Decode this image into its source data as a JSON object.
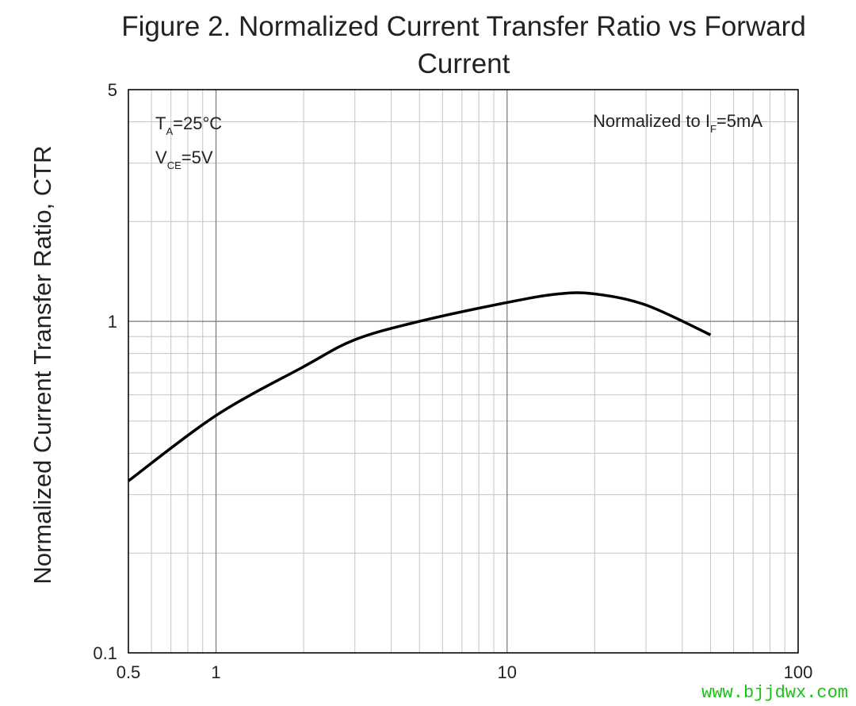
{
  "chart_data": {
    "type": "line",
    "title": "Figure 2. Normalized Current Transfer Ratio vs Forward Current",
    "y_label": "Normalized Current Transfer Ratio, CTR",
    "x_scale": "log",
    "y_scale": "log",
    "grid": true,
    "xlim": [
      0.5,
      100
    ],
    "ylim": [
      0.1,
      5
    ],
    "xticks": [
      0.5,
      1,
      10,
      100
    ],
    "yticks": [
      0.1,
      1,
      5
    ],
    "x_minor_grid": [
      0.6,
      0.7,
      0.8,
      0.9,
      2,
      3,
      4,
      5,
      6,
      7,
      8,
      9,
      20,
      30,
      40,
      50,
      60,
      70,
      80,
      90
    ],
    "y_minor_grid": [
      0.2,
      0.3,
      0.4,
      0.5,
      0.6,
      0.7,
      0.8,
      0.9,
      2,
      3,
      4
    ],
    "x": [
      0.5,
      1,
      2,
      3,
      5,
      10,
      15,
      20,
      30,
      50
    ],
    "series": [
      {
        "name": "CTR",
        "color": "#000000",
        "values": [
          0.33,
          0.52,
          0.73,
          0.88,
          1.0,
          1.14,
          1.21,
          1.21,
          1.12,
          0.91
        ]
      }
    ],
    "annotations": [
      [
        {
          "text": "T"
        },
        {
          "text": "A",
          "sub": true
        },
        {
          "text": "=25°C"
        }
      ],
      [
        {
          "text": "V"
        },
        {
          "text": "CE",
          "sub": true
        },
        {
          "text": "=5V"
        }
      ],
      [
        {
          "text": "Normalized to I"
        },
        {
          "text": "F",
          "sub": true
        },
        {
          "text": "=5mA"
        }
      ]
    ],
    "watermark": "www.bjjdwx.com"
  }
}
